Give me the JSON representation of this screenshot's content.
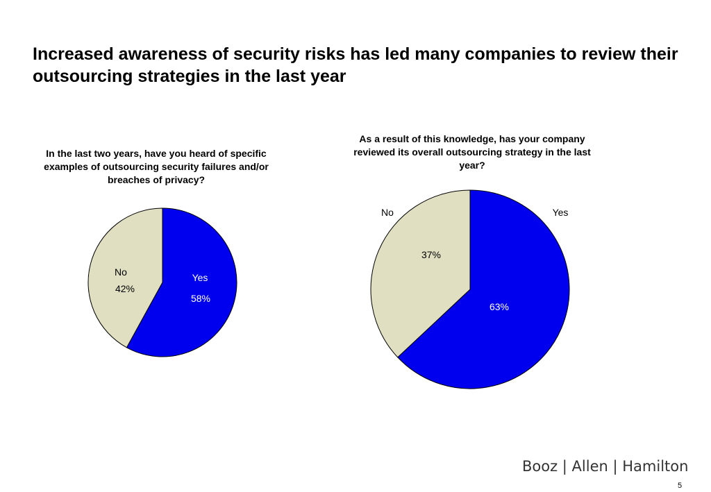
{
  "slide": {
    "title": "Increased awareness of security risks has led many companies to review their outsourcing strategies in the last year",
    "logo_text": "Booz | Allen | Hamilton",
    "page_number": "5"
  },
  "colors": {
    "yes": "#0000EE",
    "no": "#E0DFC2",
    "outline": "#000000"
  },
  "chart_data": [
    {
      "type": "pie",
      "title": "In the last two years, have you heard of specific examples of outsourcing security failures and/or breaches of privacy?",
      "slices": [
        {
          "label": "Yes",
          "value": 58,
          "value_label": "58%"
        },
        {
          "label": "No",
          "value": 42,
          "value_label": "42%"
        }
      ]
    },
    {
      "type": "pie",
      "title": "As a result of this knowledge, has your company reviewed its overall outsourcing strategy in the last year?",
      "slices": [
        {
          "label": "Yes",
          "value": 63,
          "value_label": "63%"
        },
        {
          "label": "No",
          "value": 37,
          "value_label": "37%"
        }
      ]
    }
  ]
}
